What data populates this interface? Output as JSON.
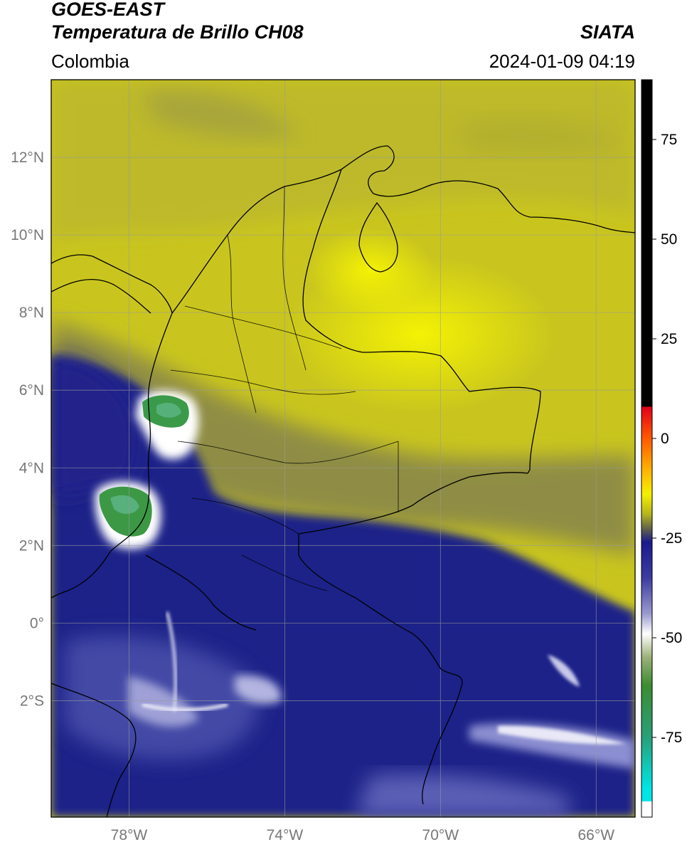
{
  "header": {
    "title_line1": "GOES-EAST",
    "title_line2": "Temperatura de Brillo CH08",
    "organization": "SIATA",
    "region": "Colombia",
    "datetime": "2024-01-09 04:19"
  },
  "map": {
    "lon_range": [
      -80,
      -65
    ],
    "lat_range": [
      -5,
      14
    ],
    "lon_ticks": [
      {
        "value": -78,
        "label": "78°W"
      },
      {
        "value": -74,
        "label": "74°W"
      },
      {
        "value": -70,
        "label": "70°W"
      },
      {
        "value": -66,
        "label": "66°W"
      }
    ],
    "lat_ticks": [
      {
        "value": 12,
        "label": "12°N"
      },
      {
        "value": 10,
        "label": "10°N"
      },
      {
        "value": 8,
        "label": "8°N"
      },
      {
        "value": 6,
        "label": "6°N"
      },
      {
        "value": 4,
        "label": "4°N"
      },
      {
        "value": 2,
        "label": "2°N"
      },
      {
        "value": 0,
        "label": "0°"
      },
      {
        "value": -2,
        "label": "2°S"
      }
    ],
    "gridlines": true
  },
  "colorbar": {
    "range": [
      -95,
      90
    ],
    "ticks": [
      {
        "value": 75,
        "label": "75"
      },
      {
        "value": 50,
        "label": "50"
      },
      {
        "value": 25,
        "label": "25"
      },
      {
        "value": 0,
        "label": "0"
      },
      {
        "value": -25,
        "label": "-25"
      },
      {
        "value": -50,
        "label": "-50"
      },
      {
        "value": -75,
        "label": "-75"
      }
    ],
    "stops": [
      {
        "value": 90,
        "color": "#000000"
      },
      {
        "value": 8,
        "color": "#000000"
      },
      {
        "value": 7.9,
        "color": "#e0001a"
      },
      {
        "value": 0,
        "color": "#ff5a00"
      },
      {
        "value": -8,
        "color": "#ffb400"
      },
      {
        "value": -14,
        "color": "#f4f000"
      },
      {
        "value": -19,
        "color": "#b4b41e"
      },
      {
        "value": -23,
        "color": "#5a5a50"
      },
      {
        "value": -26,
        "color": "#1a1a8c"
      },
      {
        "value": -35,
        "color": "#3c3ca0"
      },
      {
        "value": -44,
        "color": "#9a9ad0"
      },
      {
        "value": -49,
        "color": "#ffffff"
      },
      {
        "value": -55,
        "color": "#9ab078"
      },
      {
        "value": -62,
        "color": "#3c8c32"
      },
      {
        "value": -75,
        "color": "#28a07a"
      },
      {
        "value": -88,
        "color": "#00e6e6"
      },
      {
        "value": -91,
        "color": "#00e6e6"
      },
      {
        "value": -91.1,
        "color": "#ffffff"
      },
      {
        "value": -95,
        "color": "#ffffff"
      }
    ]
  },
  "colors": {
    "cloud_top_blue": "#1c1f86",
    "dry_yellow": "#d6d21a",
    "bright_yellow": "#f0ee06",
    "olive": "#8c8c3c",
    "convective_green": "#3c9a48",
    "white": "#ffffff"
  }
}
